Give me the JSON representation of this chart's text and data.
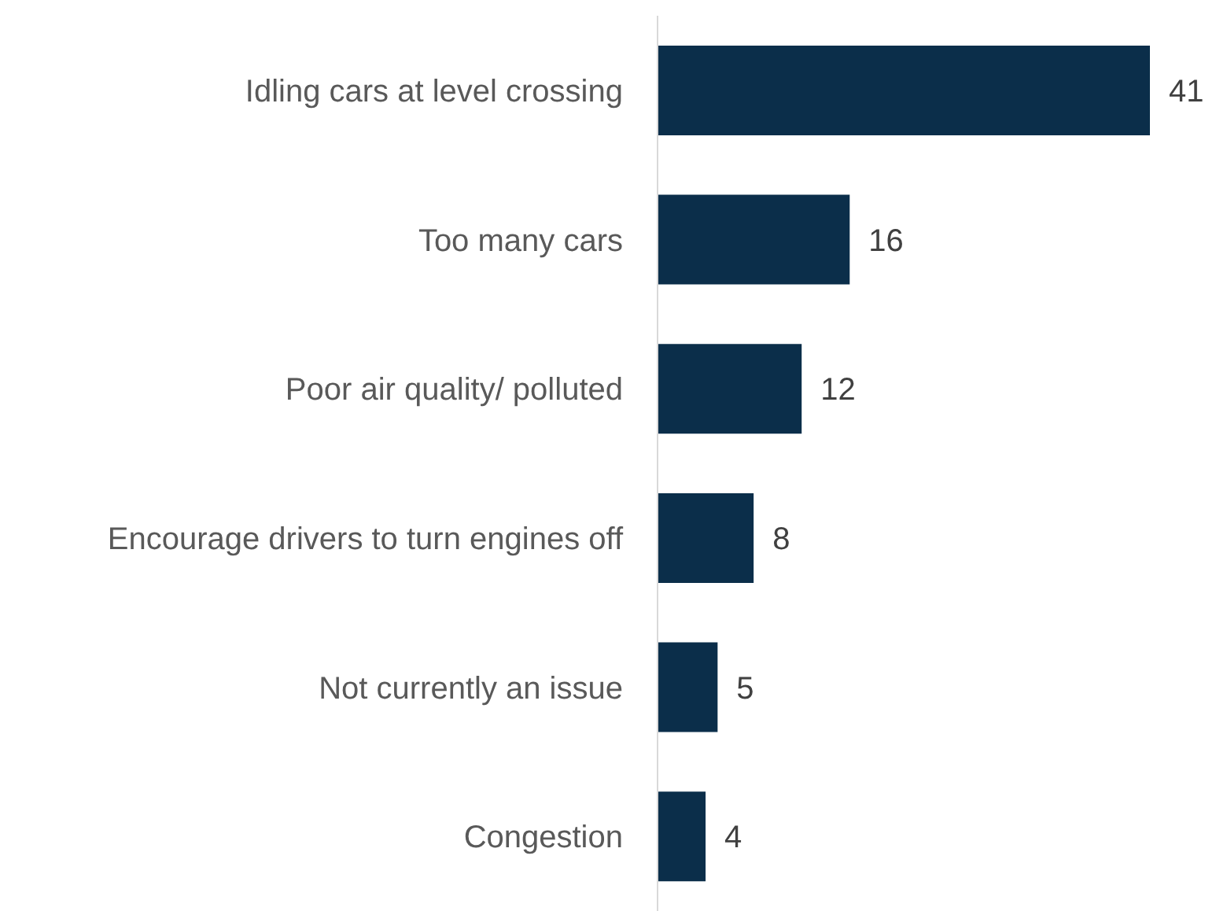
{
  "chart_data": {
    "type": "bar",
    "orientation": "horizontal",
    "categories": [
      "Idling cars at level crossing",
      "Too many cars",
      "Poor air quality/ polluted",
      "Encourage drivers to turn engines off",
      "Not currently an issue",
      "Congestion"
    ],
    "values": [
      41,
      16,
      12,
      8,
      5,
      4
    ],
    "color": "#0b2e4a",
    "data_labels": true
  }
}
